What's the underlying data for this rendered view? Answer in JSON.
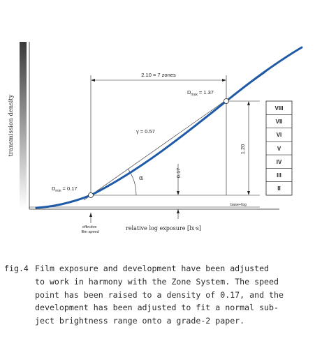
{
  "diagram": {
    "y_axis_label": "transmission density",
    "x_axis_label": "relative log exposure [lx·s]",
    "range_label": "2.10 = 7 zones",
    "dmax": {
      "name": "D",
      "sub": "max",
      "value": "= 1.37"
    },
    "dmin": {
      "name": "D",
      "sub": "min",
      "value": "= 0.17"
    },
    "gamma_label": "γ = 0.57",
    "alpha_label": "α",
    "speed_label": "0.17",
    "density_range_label": "1.20",
    "base_fog_label": "base+fog",
    "effective_speed_label": [
      "effective",
      "film speed"
    ],
    "zones": [
      "VIII",
      "VII",
      "VI",
      "V",
      "IV",
      "III",
      "II"
    ],
    "colors": {
      "curve": "#1f5aa6",
      "ink": "#222222",
      "wedge_dark": "#3a3a3a"
    }
  },
  "caption": {
    "label": "fig.4",
    "lines": [
      "Film exposure and development have been adjusted",
      "to work in harmony with the Zone System. The speed",
      "point has been raised to a density of 0.17, and the",
      "development has been adjusted to fit a normal sub-",
      "ject brightness range onto a grade-2 paper."
    ]
  }
}
